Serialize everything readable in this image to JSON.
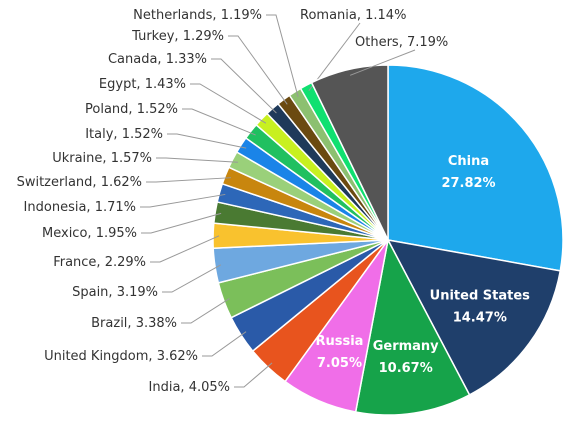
{
  "chart_data": {
    "type": "pie",
    "categories": [
      "China",
      "United States",
      "Germany",
      "Russia",
      "India",
      "United Kingdom",
      "Brazil",
      "Spain",
      "France",
      "Mexico",
      "Indonesia",
      "Switzerland",
      "Ukraine",
      "Italy",
      "Poland",
      "Egypt",
      "Canada",
      "Turkey",
      "Netherlands",
      "Romania",
      "Others"
    ],
    "values": [
      27.82,
      14.47,
      10.67,
      7.05,
      4.05,
      3.62,
      3.38,
      3.19,
      2.29,
      1.95,
      1.71,
      1.62,
      1.57,
      1.52,
      1.52,
      1.43,
      1.33,
      1.29,
      1.19,
      1.14,
      7.19
    ],
    "value_labels": [
      "27.82%",
      "14.47%",
      "10.67%",
      "7.05%",
      "4.05%",
      "3.62%",
      "3.38%",
      "3.19%",
      "2.29%",
      "1.95%",
      "1.71%",
      "1.62%",
      "1.57%",
      "1.52%",
      "1.52%",
      "1.43%",
      "1.33%",
      "1.29%",
      "1.19%",
      "1.14%",
      "7.19%"
    ],
    "label_separator": ", ",
    "colors": [
      "#1ea8ec",
      "#1f3f6b",
      "#16a34a",
      "#f06ee8",
      "#e8541e",
      "#2a5aa8",
      "#7bbf5a",
      "#6ea8e0",
      "#f9c22e",
      "#4a7a32",
      "#2d67b8",
      "#c8860e",
      "#9ad07a",
      "#1a84e8",
      "#20c060",
      "#c8f020",
      "#1f3a5a",
      "#6b4a10",
      "#8cc070",
      "#10e070",
      "#555555"
    ]
  }
}
